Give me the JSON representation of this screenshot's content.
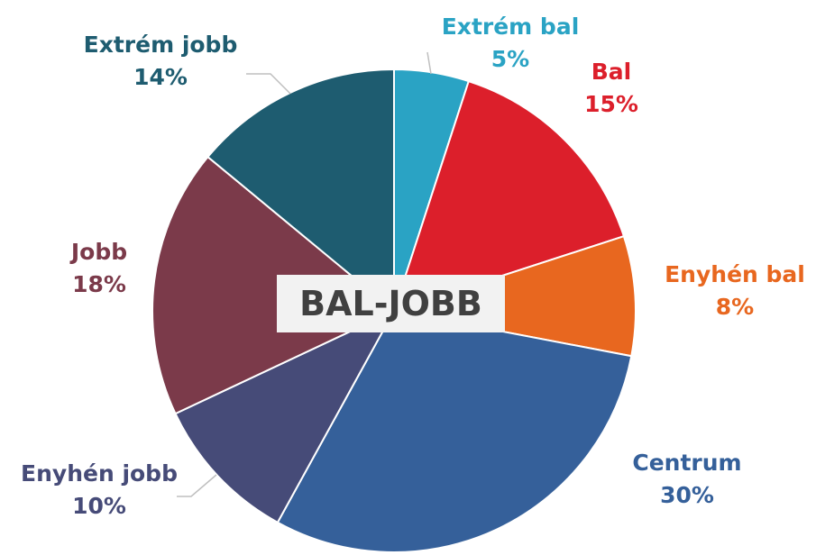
{
  "chart_data": {
    "type": "pie",
    "title": "BAL-JOBB",
    "slices": [
      {
        "label": "Extrém bal",
        "value": 5,
        "value_label": "5%",
        "color": "#2aa3c4"
      },
      {
        "label": "Bal",
        "value": 15,
        "value_label": "15%",
        "color": "#dc1f2b"
      },
      {
        "label": "Enyhén bal",
        "value": 8,
        "value_label": "8%",
        "color": "#e8671f"
      },
      {
        "label": "Centrum",
        "value": 30,
        "value_label": "30%",
        "color": "#35609a"
      },
      {
        "label": "Enyhén jobb",
        "value": 10,
        "value_label": "10%",
        "color": "#464b78"
      },
      {
        "label": "Jobb",
        "value": 18,
        "value_label": "18%",
        "color": "#7b3a4a"
      },
      {
        "label": "Extrém jobb",
        "value": 14,
        "value_label": "14%",
        "color": "#1e5c70"
      }
    ]
  }
}
